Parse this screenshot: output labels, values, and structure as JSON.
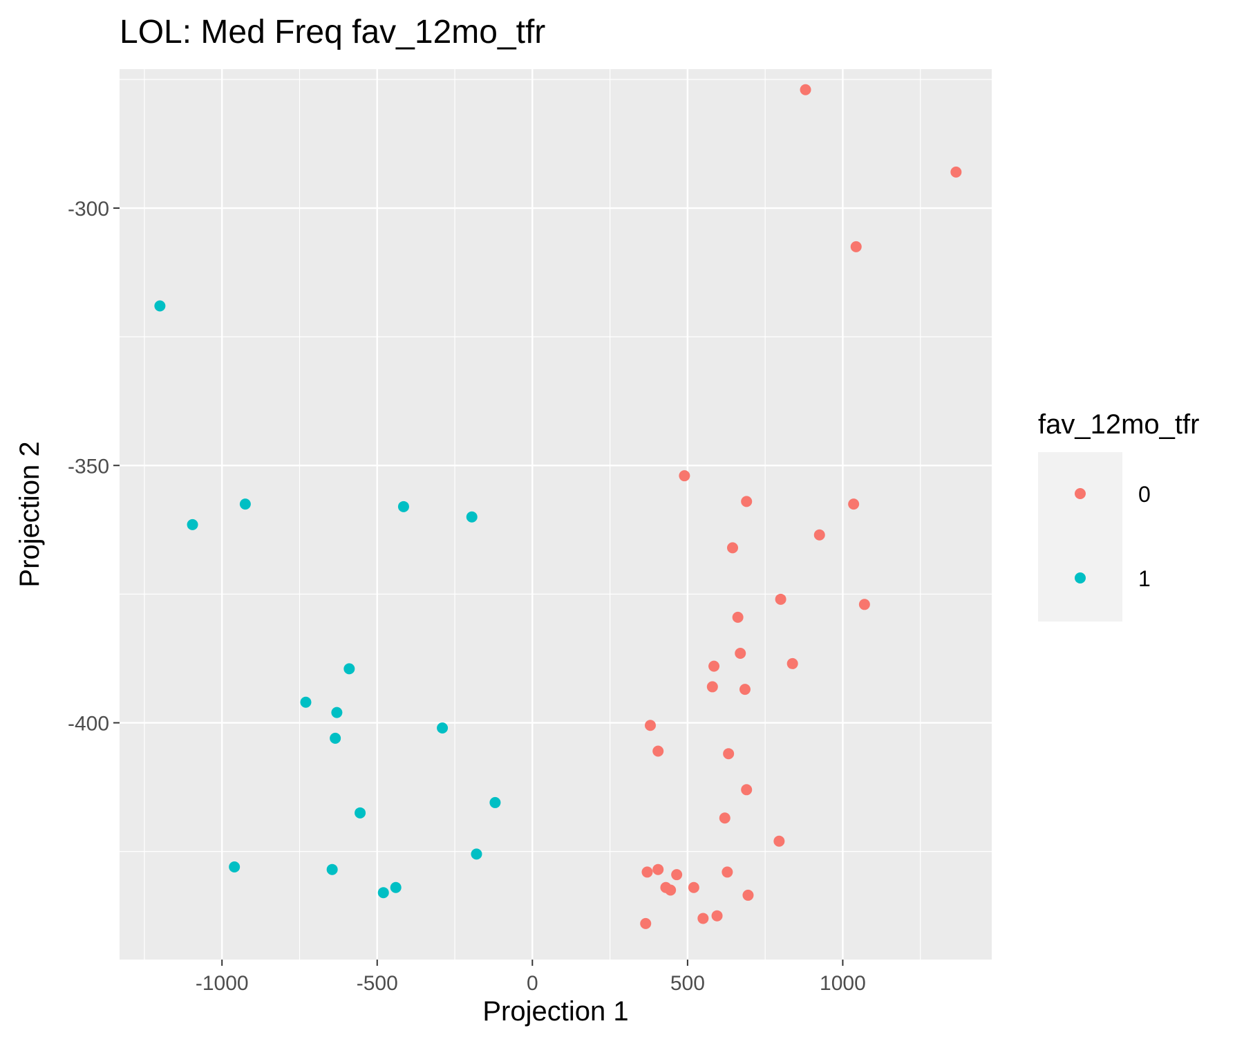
{
  "chart_data": {
    "type": "scatter",
    "title": "LOL: Med Freq fav_12mo_tfr",
    "xlabel": "Projection 1",
    "ylabel": "Projection 2",
    "xlim": [
      -1330,
      1480
    ],
    "ylim": [
      -446,
      -273
    ],
    "xticks": [
      -1000,
      -500,
      0,
      500,
      1000
    ],
    "xtick_labels": [
      "-1000",
      "-500",
      "0",
      "500",
      "1000"
    ],
    "yticks": [
      -300,
      -350,
      -400
    ],
    "ytick_labels": [
      "-300",
      "-350",
      "-400"
    ],
    "x_minor_ticks": [
      -1250,
      -750,
      -250,
      250,
      750,
      1250
    ],
    "y_minor_ticks": [
      -275,
      -325,
      -375,
      -425
    ],
    "grid": true,
    "panel_color": "#EBEBEB",
    "grid_color": "#FFFFFF",
    "legend": {
      "title": "fav_12mo_tfr",
      "position": "right",
      "entries": [
        {
          "label": "0",
          "color": "#F8766D"
        },
        {
          "label": "1",
          "color": "#00BFC4"
        }
      ]
    },
    "series": [
      {
        "name": "0",
        "color": "#F8766D",
        "points": [
          [
            880,
            -277
          ],
          [
            1365,
            -293
          ],
          [
            1043,
            -307.5
          ],
          [
            490,
            -352
          ],
          [
            690,
            -357
          ],
          [
            1035,
            -357.5
          ],
          [
            925,
            -363.5
          ],
          [
            645,
            -366
          ],
          [
            800,
            -376
          ],
          [
            1070,
            -377
          ],
          [
            662,
            -379.5
          ],
          [
            670,
            -386.5
          ],
          [
            838,
            -388.5
          ],
          [
            585,
            -389
          ],
          [
            580,
            -393
          ],
          [
            685,
            -393.5
          ],
          [
            380,
            -400.5
          ],
          [
            405,
            -405.5
          ],
          [
            632,
            -406
          ],
          [
            690,
            -413
          ],
          [
            620,
            -418.5
          ],
          [
            795,
            -423
          ],
          [
            370,
            -429
          ],
          [
            405,
            -428.5
          ],
          [
            465,
            -429.5
          ],
          [
            628,
            -429
          ],
          [
            430,
            -432
          ],
          [
            445,
            -432.5
          ],
          [
            520,
            -432
          ],
          [
            695,
            -433.5
          ],
          [
            550,
            -438
          ],
          [
            595,
            -437.5
          ],
          [
            365,
            -439
          ]
        ]
      },
      {
        "name": "1",
        "color": "#00BFC4",
        "points": [
          [
            -1200,
            -319
          ],
          [
            -1095,
            -361.5
          ],
          [
            -925,
            -357.5
          ],
          [
            -415,
            -358
          ],
          [
            -195,
            -360
          ],
          [
            -590,
            -389.5
          ],
          [
            -730,
            -396
          ],
          [
            -630,
            -398
          ],
          [
            -290,
            -401
          ],
          [
            -635,
            -403
          ],
          [
            -120,
            -415.5
          ],
          [
            -555,
            -417.5
          ],
          [
            -180,
            -425.5
          ],
          [
            -960,
            -428
          ],
          [
            -645,
            -428.5
          ],
          [
            -440,
            -432
          ],
          [
            -480,
            -433
          ]
        ]
      }
    ]
  }
}
